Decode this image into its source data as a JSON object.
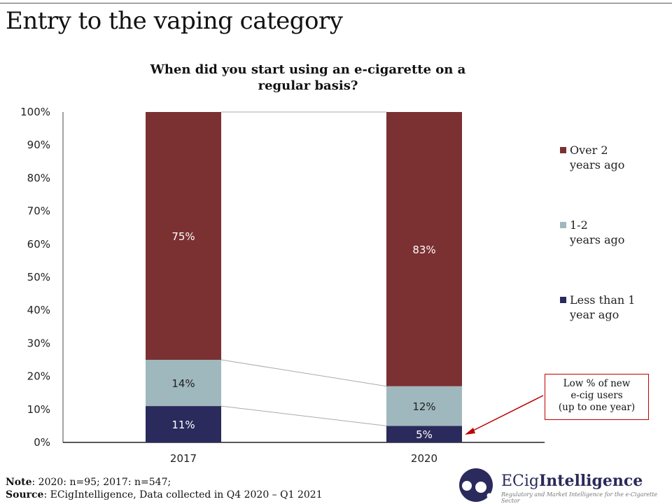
{
  "page_title": "Entry to the vaping category",
  "chart_data": {
    "type": "bar",
    "stacked": true,
    "title": "When did you start using an e-cigarette on a regular basis?",
    "categories": [
      "2017",
      "2020"
    ],
    "ylim": [
      0,
      100
    ],
    "yticks": [
      "0%",
      "10%",
      "20%",
      "30%",
      "40%",
      "50%",
      "60%",
      "70%",
      "80%",
      "90%",
      "100%"
    ],
    "series": [
      {
        "name": "Less than 1 year ago",
        "values": [
          11,
          5
        ],
        "labels": [
          "11%",
          "5%"
        ],
        "color": "#2b2a5c",
        "label_color": "#ffffff"
      },
      {
        "name": "1-2 years ago",
        "values": [
          14,
          12
        ],
        "labels": [
          "14%",
          "12%"
        ],
        "color": "#9fb8bd",
        "label_color": "#222222"
      },
      {
        "name": "Over 2 years ago",
        "values": [
          75,
          83
        ],
        "labels": [
          "75%",
          "83%"
        ],
        "color": "#7b3032",
        "label_color": "#ffffff"
      }
    ],
    "legend_position": "right",
    "grid": false
  },
  "legend": [
    {
      "line1": "Over 2",
      "line2": "years ago",
      "color": "#7b3032"
    },
    {
      "line1": "1-2",
      "line2": "years ago",
      "color": "#9fb8bd"
    },
    {
      "line1": "Less than 1",
      "line2": "year ago",
      "color": "#2b2a5c"
    }
  ],
  "callout": {
    "line1": "Low % of new",
    "line2": "e-cig users",
    "line3": "(up to one year)",
    "color": "#c00000"
  },
  "note": {
    "label": "Note",
    "text": ": 2020: n=95; 2017: n=547;"
  },
  "source": {
    "label": "Source",
    "text": ": ECigIntelligence, Data collected in Q4 2020 – Q1 2021"
  },
  "logo": {
    "brand_a": "ECig",
    "brand_b": "Intelligence",
    "tagline": "Regulatory and Market Intelligence for the e-Cigarette Sector"
  }
}
